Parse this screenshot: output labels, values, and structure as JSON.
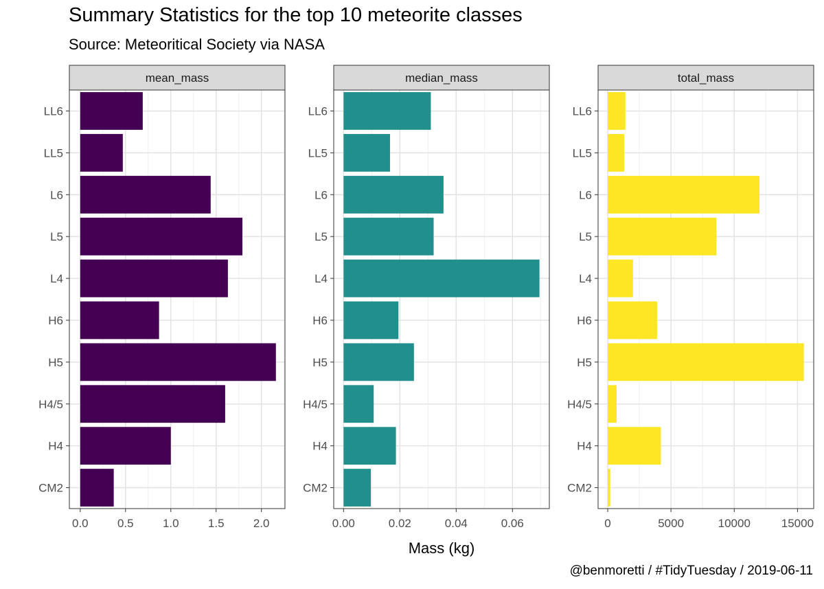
{
  "title": "Summary Statistics for the top 10 meteorite classes",
  "subtitle": "Source: Meteoritical Society via NASA",
  "caption": "@benmoretti / #TidyTuesday / 2019-06-11",
  "chart_data": {
    "type": "bar",
    "orientation": "horizontal",
    "xlabel": "Mass (kg)",
    "ylabel": "",
    "grid": true,
    "categories": [
      "LL6",
      "LL5",
      "L6",
      "L5",
      "L4",
      "H6",
      "H5",
      "H4/5",
      "H4",
      "CM2"
    ],
    "panels": [
      {
        "name": "mean_mass",
        "color": "#440154",
        "values": [
          0.69,
          0.47,
          1.44,
          1.79,
          1.63,
          0.87,
          2.16,
          1.6,
          1.0,
          0.37
        ],
        "xlim": [
          -0.12,
          2.26
        ],
        "ticks": [
          0.0,
          0.5,
          1.0,
          1.5,
          2.0
        ],
        "tick_labels": [
          "0.0",
          "0.5",
          "1.0",
          "1.5",
          "2.0"
        ]
      },
      {
        "name": "median_mass",
        "color": "#21908C",
        "values": [
          0.031,
          0.0165,
          0.0355,
          0.032,
          0.0696,
          0.0195,
          0.025,
          0.0107,
          0.0186,
          0.0097
        ],
        "xlim": [
          -0.0035,
          0.0731
        ],
        "ticks": [
          0.0,
          0.02,
          0.04,
          0.06
        ],
        "tick_labels": [
          "0.00",
          "0.02",
          "0.04",
          "0.06"
        ]
      },
      {
        "name": "total_mass",
        "color": "#FDE725",
        "values": [
          1400,
          1300,
          12000,
          8600,
          2000,
          3900,
          15500,
          700,
          4200,
          200
        ],
        "xlim": [
          -760,
          16280
        ],
        "ticks": [
          0,
          5000,
          10000,
          15000
        ],
        "tick_labels": [
          "0",
          "5000",
          "10000",
          "15000"
        ]
      }
    ]
  }
}
